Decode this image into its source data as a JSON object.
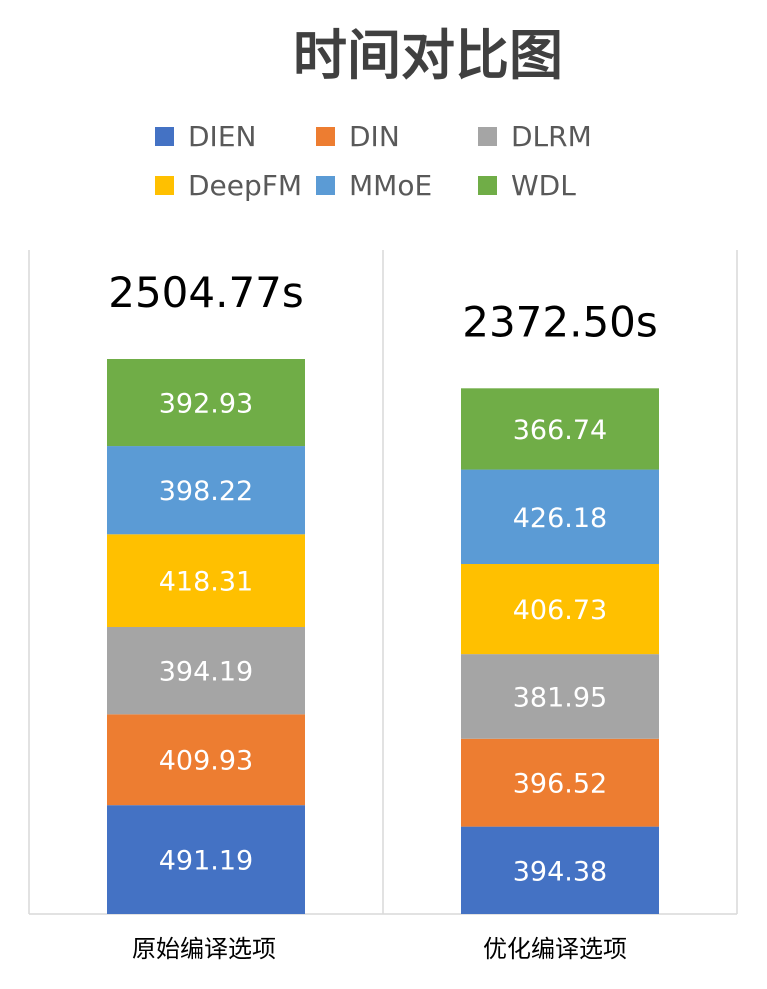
{
  "chart_data": {
    "type": "bar",
    "stacked": true,
    "title": "时间对比图",
    "categories": [
      "原始编译选项",
      "优化编译选项"
    ],
    "totals": [
      "2504.77s",
      "2372.50s"
    ],
    "series": [
      {
        "name": "DIEN",
        "color": "#4472C4",
        "values": [
          491.19,
          394.38
        ]
      },
      {
        "name": "DIN",
        "color": "#ED7D31",
        "values": [
          409.93,
          396.52
        ]
      },
      {
        "name": "DLRM",
        "color": "#A5A5A5",
        "values": [
          394.19,
          381.95
        ]
      },
      {
        "name": "DeepFM",
        "color": "#FFC000",
        "values": [
          418.31,
          406.73
        ]
      },
      {
        "name": "MMoE",
        "color": "#5B9BD5",
        "values": [
          398.22,
          426.18
        ]
      },
      {
        "name": "WDL",
        "color": "#70AD47",
        "values": [
          392.93,
          366.74
        ]
      }
    ],
    "legend_position": "top",
    "grid": false
  }
}
